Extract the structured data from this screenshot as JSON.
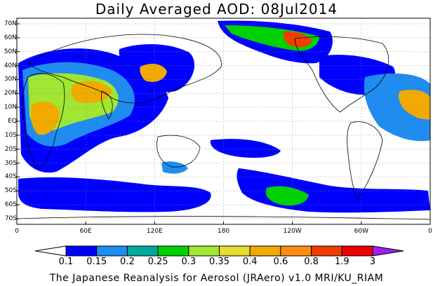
{
  "title": "Daily Averaged AOD: 08Jul2014",
  "footer": "The Japanese Reanalysis for Aerosol (JRAero) v1.0 MRI/KU_RIAM",
  "map": {
    "lat_labels": [
      "70N",
      "60N",
      "50N",
      "40N",
      "30N",
      "20N",
      "10N",
      "EQ",
      "10S",
      "20S",
      "30S",
      "40S",
      "50S",
      "60S",
      "70S"
    ],
    "lon_labels": [
      "0",
      "60E",
      "120E",
      "180",
      "120W",
      "60W",
      "0"
    ],
    "gridlines": "dotted"
  },
  "colorbar": {
    "labels": [
      "0.1",
      "0.15",
      "0.2",
      "0.25",
      "0.3",
      "0.35",
      "0.4",
      "0.6",
      "0.8",
      "1.9",
      "3"
    ],
    "colors": [
      "#ffffff",
      "#0000ff",
      "#1e8cf0",
      "#00aaa0",
      "#00d200",
      "#a0e632",
      "#e6dc32",
      "#f0aa00",
      "#fa8c14",
      "#f03c00",
      "#f00000",
      "#a020f0"
    ]
  },
  "legend_colors": {
    "ocean": "#ffffff",
    "aod_low": "#0000ff",
    "aod_mid": "#00d200",
    "aod_high": "#fa8c14",
    "aod_max": "#f00000"
  }
}
